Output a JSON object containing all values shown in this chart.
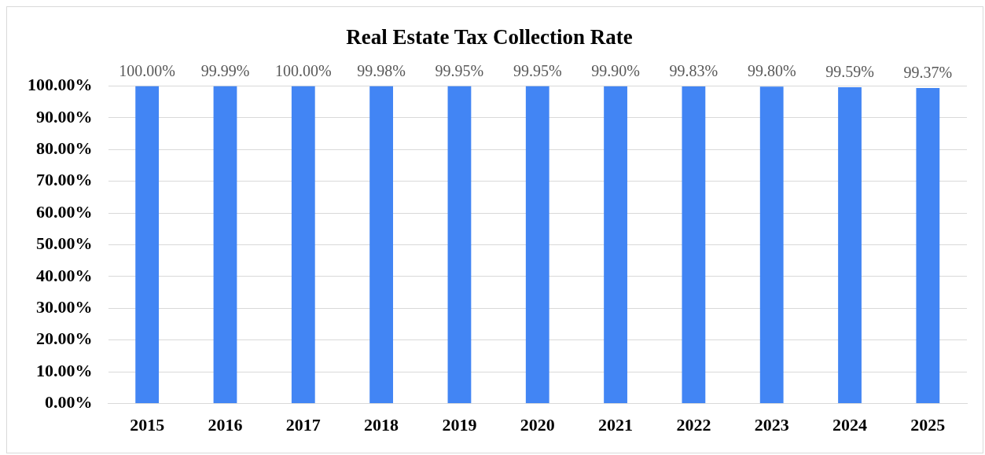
{
  "chart_data": {
    "type": "bar",
    "title": "Real Estate Tax Collection Rate",
    "categories": [
      "2015",
      "2016",
      "2017",
      "2018",
      "2019",
      "2020",
      "2021",
      "2022",
      "2023",
      "2024",
      "2025"
    ],
    "values": [
      100,
      99.99,
      100,
      99.98,
      99.95,
      99.95,
      99.9,
      99.83,
      99.8,
      99.59,
      99.37
    ],
    "value_labels": [
      "100.00%",
      "99.99%",
      "100.00%",
      "99.98%",
      "99.95%",
      "99.95%",
      "99.90%",
      "99.83%",
      "99.80%",
      "99.59%",
      "99.37%"
    ],
    "color": "#4285f4",
    "ylim": [
      0,
      100
    ],
    "yticks": [
      {
        "value": 0,
        "label": "0.00%"
      },
      {
        "value": 10,
        "label": "10.00%"
      },
      {
        "value": 20,
        "label": "20.00%"
      },
      {
        "value": 30,
        "label": "30.00%"
      },
      {
        "value": 40,
        "label": "40.00%"
      },
      {
        "value": 50,
        "label": "50.00%"
      },
      {
        "value": 60,
        "label": "60.00%"
      },
      {
        "value": 70,
        "label": "70.00%"
      },
      {
        "value": 80,
        "label": "80.00%"
      },
      {
        "value": 90,
        "label": "90.00%"
      },
      {
        "value": 100,
        "label": "100.00%"
      }
    ],
    "grid": "y"
  }
}
